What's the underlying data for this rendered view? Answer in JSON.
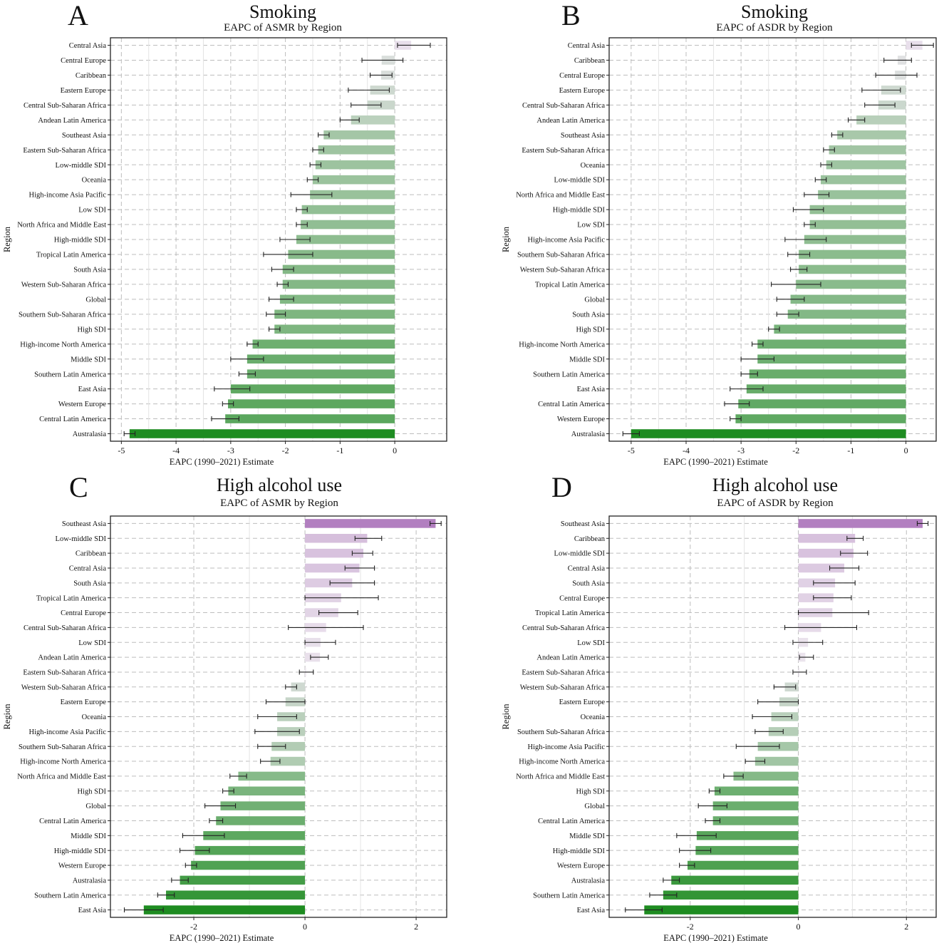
{
  "colors": {
    "purple_max": "#b27fc0",
    "neutral": "#ece6ee",
    "green_max": "#1e8c21",
    "grid": "#bdbdbd",
    "error_bar": "#222222"
  },
  "chart_data": [
    {
      "id": "A",
      "type": "bar",
      "orientation": "horizontal",
      "letter": "A",
      "title": "Smoking",
      "subtitle": "EAPC of ASMR by Region",
      "xlabel": "EAPC (1990–2021) Estimate",
      "ylabel": "Region",
      "xlim": [
        -5.2,
        0.95
      ],
      "xticks": [
        -5,
        -4,
        -3,
        -2,
        -1,
        0
      ],
      "color_range": [
        -4.8,
        2.35
      ],
      "categories": [
        "Central Asia",
        "Central Europe",
        "Caribbean",
        "Eastern Europe",
        "Central Sub-Saharan Africa",
        "Andean Latin America",
        "Southeast Asia",
        "Eastern Sub-Saharan Africa",
        "Low-middle SDI",
        "Oceania",
        "High-income Asia Pacific",
        "Low SDI",
        "North Africa and Middle East",
        "High-middle SDI",
        "Tropical Latin America",
        "South Asia",
        "Western Sub-Saharan Africa",
        "Global",
        "Southern Sub-Saharan Africa",
        "High SDI",
        "High-income North America",
        "Middle SDI",
        "Southern Latin America",
        "East Asia",
        "Western Europe",
        "Central Latin America",
        "Australasia"
      ],
      "values": [
        0.3,
        -0.24,
        -0.25,
        -0.45,
        -0.5,
        -0.8,
        -1.3,
        -1.4,
        -1.45,
        -1.5,
        -1.55,
        -1.7,
        -1.72,
        -1.8,
        -1.95,
        -2.05,
        -2.05,
        -2.1,
        -2.2,
        -2.2,
        -2.6,
        -2.7,
        -2.7,
        -3.0,
        -3.05,
        -3.1,
        -4.85
      ],
      "ci_low": [
        0.05,
        -0.6,
        -0.45,
        -0.85,
        -0.8,
        -1.0,
        -1.4,
        -1.5,
        -1.55,
        -1.6,
        -1.9,
        -1.8,
        -1.8,
        -2.1,
        -2.4,
        -2.25,
        -2.15,
        -2.3,
        -2.35,
        -2.3,
        -2.7,
        -3.0,
        -2.85,
        -3.3,
        -3.15,
        -3.35,
        -4.95
      ],
      "ci_high": [
        0.65,
        0.15,
        -0.05,
        -0.1,
        -0.25,
        -0.65,
        -1.2,
        -1.3,
        -1.35,
        -1.4,
        -1.15,
        -1.6,
        -1.6,
        -1.55,
        -1.5,
        -1.85,
        -1.95,
        -1.85,
        -2.0,
        -2.1,
        -2.5,
        -2.4,
        -2.55,
        -2.65,
        -2.95,
        -2.85,
        -4.75
      ]
    },
    {
      "id": "B",
      "type": "bar",
      "orientation": "horizontal",
      "letter": "B",
      "title": "Smoking",
      "subtitle": "EAPC of ASDR by Region",
      "xlabel": "EAPC (1990–2021) Estimate",
      "ylabel": "Region",
      "xlim": [
        -5.4,
        0.55
      ],
      "xticks": [
        -5,
        -4,
        -3,
        -2,
        -1,
        0
      ],
      "color_range": [
        -5.0,
        2.3
      ],
      "categories": [
        "Central Asia",
        "Caribbean",
        "Central Europe",
        "Eastern Europe",
        "Central Sub-Saharan Africa",
        "Andean Latin America",
        "Southeast Asia",
        "Eastern Sub-Saharan Africa",
        "Oceania",
        "Low-middle SDI",
        "North Africa and Middle East",
        "High-middle SDI",
        "Low SDI",
        "High-income Asia Pacific",
        "Southern Sub-Saharan Africa",
        "Western Sub-Saharan Africa",
        "Tropical Latin America",
        "Global",
        "South Asia",
        "High SDI",
        "High-income North America",
        "Middle SDI",
        "Southern Latin America",
        "East Asia",
        "Central Latin America",
        "Western Europe",
        "Australasia"
      ],
      "values": [
        0.3,
        -0.15,
        -0.2,
        -0.45,
        -0.5,
        -0.9,
        -1.25,
        -1.4,
        -1.45,
        -1.55,
        -1.6,
        -1.75,
        -1.75,
        -1.85,
        -1.95,
        -1.95,
        -2.0,
        -2.1,
        -2.15,
        -2.4,
        -2.7,
        -2.7,
        -2.85,
        -2.9,
        -3.05,
        -3.1,
        -5.0
      ],
      "ci_low": [
        0.1,
        -0.4,
        -0.55,
        -0.8,
        -0.75,
        -1.05,
        -1.35,
        -1.5,
        -1.55,
        -1.65,
        -1.85,
        -2.05,
        -1.85,
        -2.2,
        -2.15,
        -2.1,
        -2.45,
        -2.35,
        -2.35,
        -2.5,
        -2.8,
        -3.0,
        -3.0,
        -3.2,
        -3.3,
        -3.2,
        -5.15
      ],
      "ci_high": [
        0.5,
        0.1,
        0.2,
        -0.1,
        -0.2,
        -0.75,
        -1.15,
        -1.3,
        -1.35,
        -1.45,
        -1.4,
        -1.5,
        -1.65,
        -1.45,
        -1.75,
        -1.8,
        -1.55,
        -1.85,
        -1.95,
        -2.3,
        -2.6,
        -2.4,
        -2.7,
        -2.6,
        -2.85,
        -3.0,
        -4.85
      ]
    },
    {
      "id": "C",
      "type": "bar",
      "orientation": "horizontal",
      "letter": "C",
      "title": "High alcohol use",
      "subtitle": "EAPC of ASMR by Region",
      "xlabel": "EAPC (1990–2021) Estimate",
      "ylabel": "Region",
      "xlim": [
        -3.5,
        2.55
      ],
      "xticks": [
        -2,
        0,
        2
      ],
      "color_range": [
        -2.9,
        2.35
      ],
      "categories": [
        "Southeast Asia",
        "Low-middle SDI",
        "Caribbean",
        "Central Asia",
        "South Asia",
        "Tropical Latin America",
        "Central Europe",
        "Central Sub-Saharan Africa",
        "Low SDI",
        "Andean Latin America",
        "Eastern Sub-Saharan Africa",
        "Western Sub-Saharan Africa",
        "Eastern Europe",
        "Oceania",
        "High-income Asia Pacific",
        "Southern Sub-Saharan Africa",
        "High-income North America",
        "North Africa and Middle East",
        "High SDI",
        "Global",
        "Central Latin America",
        "Middle SDI",
        "High-middle SDI",
        "Western Europe",
        "Australasia",
        "Southern Latin America",
        "East Asia"
      ],
      "values": [
        2.35,
        1.12,
        1.05,
        0.98,
        0.85,
        0.65,
        0.6,
        0.38,
        0.28,
        0.27,
        0.02,
        -0.25,
        -0.35,
        -0.5,
        -0.5,
        -0.6,
        -0.62,
        -1.2,
        -1.38,
        -1.52,
        -1.6,
        -1.83,
        -1.98,
        -2.05,
        -2.25,
        -2.5,
        -2.9
      ],
      "ci_low": [
        2.25,
        0.9,
        0.85,
        0.72,
        0.45,
        0.0,
        0.25,
        -0.3,
        0.0,
        0.1,
        -0.1,
        -0.35,
        -0.7,
        -0.85,
        -0.9,
        -0.85,
        -0.8,
        -1.35,
        -1.48,
        -1.8,
        -1.72,
        -2.2,
        -2.25,
        -2.15,
        -2.4,
        -2.65,
        -3.25
      ],
      "ci_high": [
        2.45,
        1.38,
        1.22,
        1.25,
        1.25,
        1.32,
        0.95,
        1.05,
        0.55,
        0.42,
        0.15,
        -0.15,
        0.0,
        -0.15,
        -0.1,
        -0.35,
        -0.45,
        -1.05,
        -1.28,
        -1.25,
        -1.48,
        -1.45,
        -1.72,
        -1.95,
        -2.1,
        -2.35,
        -2.55
      ]
    },
    {
      "id": "D",
      "type": "bar",
      "orientation": "horizontal",
      "letter": "D",
      "title": "High alcohol use",
      "subtitle": "EAPC of ASDR by Region",
      "xlabel": "EAPC (1990–2021) Estimate",
      "ylabel": "Region",
      "xlim": [
        -3.5,
        2.55
      ],
      "xticks": [
        -2,
        0,
        2
      ],
      "color_range": [
        -2.85,
        2.3
      ],
      "categories": [
        "Southeast Asia",
        "Caribbean",
        "Low-middle SDI",
        "Central Asia",
        "South Asia",
        "Central Europe",
        "Tropical Latin America",
        "Central Sub-Saharan Africa",
        "Low SDI",
        "Andean Latin America",
        "Eastern Sub-Saharan Africa",
        "Western Sub-Saharan Africa",
        "Eastern Europe",
        "Oceania",
        "Southern Sub-Saharan Africa",
        "High-income Asia Pacific",
        "High-income North America",
        "North Africa and Middle East",
        "High SDI",
        "Global",
        "Central Latin America",
        "Middle SDI",
        "High-middle SDI",
        "Western Europe",
        "Australasia",
        "Southern Latin America",
        "East Asia"
      ],
      "values": [
        2.3,
        1.05,
        1.02,
        0.85,
        0.68,
        0.65,
        0.63,
        0.42,
        0.18,
        0.13,
        0.02,
        -0.25,
        -0.35,
        -0.5,
        -0.55,
        -0.75,
        -0.8,
        -1.2,
        -1.55,
        -1.58,
        -1.58,
        -1.88,
        -1.9,
        -2.05,
        -2.35,
        -2.5,
        -2.85
      ],
      "ci_low": [
        2.2,
        0.9,
        0.78,
        0.58,
        0.28,
        0.28,
        0.0,
        -0.25,
        -0.1,
        0.02,
        -0.1,
        -0.45,
        -0.75,
        -0.85,
        -0.8,
        -1.15,
        -0.98,
        -1.38,
        -1.65,
        -1.85,
        -1.72,
        -2.25,
        -2.2,
        -2.2,
        -2.5,
        -2.75,
        -3.2
      ],
      "ci_high": [
        2.4,
        1.2,
        1.28,
        1.12,
        1.05,
        0.98,
        1.3,
        1.08,
        0.45,
        0.28,
        0.15,
        -0.05,
        0.0,
        -0.12,
        -0.28,
        -0.35,
        -0.62,
        -1.02,
        -1.45,
        -1.32,
        -1.45,
        -1.52,
        -1.62,
        -1.92,
        -2.2,
        -2.25,
        -2.52
      ]
    }
  ]
}
